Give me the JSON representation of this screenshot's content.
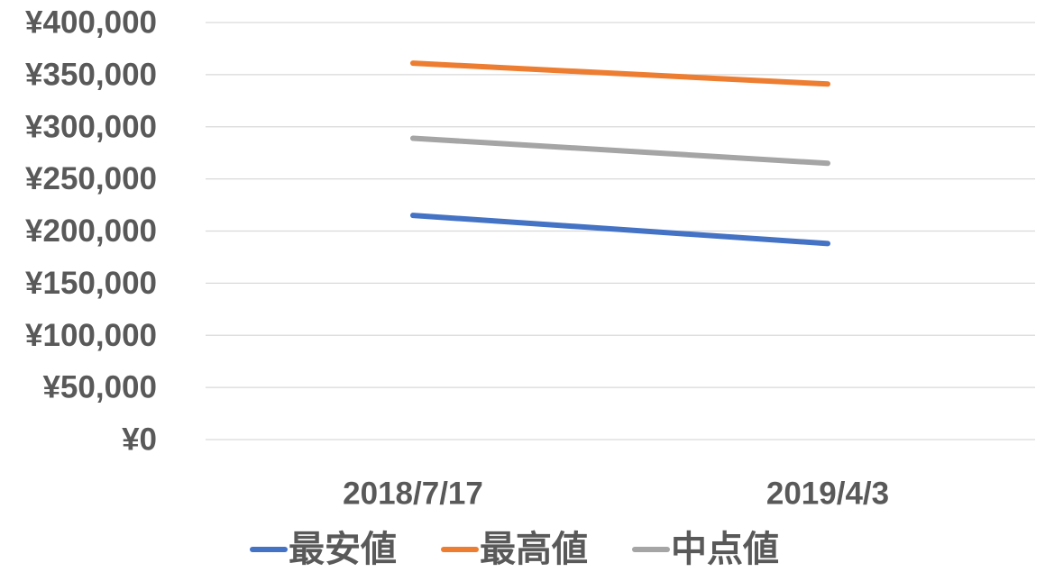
{
  "chart_data": {
    "type": "line",
    "title": "",
    "xlabel": "",
    "ylabel": "",
    "categories": [
      "2018/7/17",
      "2019/4/3"
    ],
    "ylim": [
      0,
      400000
    ],
    "yticks": [
      0,
      50000,
      100000,
      150000,
      200000,
      250000,
      300000,
      350000,
      400000
    ],
    "ytick_labels": [
      "¥0",
      "¥50,000",
      "¥100,000",
      "¥150,000",
      "¥200,000",
      "¥250,000",
      "¥300,000",
      "¥350,000",
      "¥400,000"
    ],
    "grid": true,
    "legend_position": "bottom",
    "series": [
      {
        "name": "最安値",
        "values": [
          215000,
          188000
        ],
        "color": "#4472C4"
      },
      {
        "name": "最高値",
        "values": [
          361000,
          341000
        ],
        "color": "#ED7D31"
      },
      {
        "name": "中点値",
        "values": [
          289000,
          265000
        ],
        "color": "#A5A5A5"
      }
    ]
  }
}
